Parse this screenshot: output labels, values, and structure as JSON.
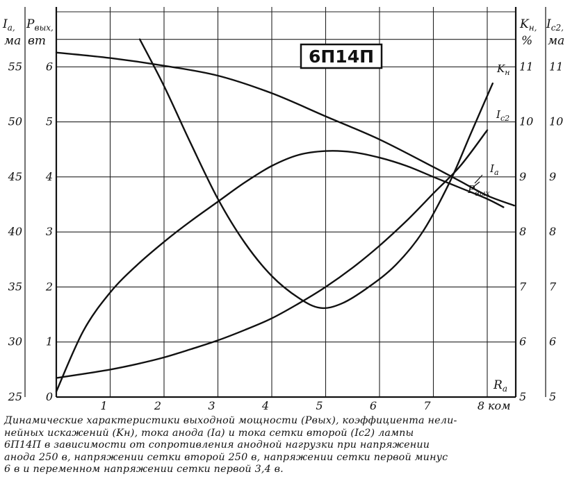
{
  "chart_data": {
    "type": "line",
    "title": "6П14П",
    "x": {
      "label": "R",
      "label_sub": "a",
      "unit": "ком",
      "range": [
        0,
        8.5
      ],
      "ticks": [
        1,
        2,
        3,
        4,
        5,
        6,
        7,
        8
      ],
      "tick_labels": [
        "1",
        "2",
        "3",
        "4",
        "5",
        "6",
        "7",
        "8"
      ]
    },
    "axes": {
      "ia": {
        "label": "I",
        "label_sub": "a,",
        "unit": "ма",
        "range": [
          25,
          60
        ],
        "tick_values": [
          25,
          30,
          35,
          40,
          45,
          50,
          55
        ],
        "tick_labels": [
          "25",
          "30",
          "35",
          "40",
          "45",
          "50",
          "55"
        ]
      },
      "pout": {
        "label": "P",
        "label_sub": "вых,",
        "unit": "вт",
        "range": [
          0,
          7
        ],
        "tick_values": [
          0,
          1,
          2,
          3,
          4,
          5,
          6
        ],
        "tick_labels": [
          "0",
          "1",
          "2",
          "3",
          "4",
          "5",
          "6"
        ]
      },
      "kn": {
        "label": "K",
        "label_sub": "н,",
        "unit": "%",
        "range": [
          5,
          12
        ],
        "tick_values": [
          5,
          6,
          7,
          8,
          9,
          10,
          11
        ],
        "tick_labels": [
          "5",
          "6",
          "7",
          "8",
          "9",
          "10",
          "11"
        ]
      },
      "ic2": {
        "label": "I",
        "label_sub": "c2,",
        "unit": "ма",
        "range": [
          5,
          12
        ],
        "tick_values": [
          5,
          6,
          7,
          8,
          9,
          10,
          11
        ],
        "tick_labels": [
          "5",
          "6",
          "7",
          "8",
          "9",
          "10",
          "11"
        ]
      }
    },
    "grid": true,
    "series": [
      {
        "name": "K",
        "name_sub": "н",
        "axis": "kn",
        "x": [
          1.55,
          2.0,
          2.5,
          3.0,
          3.5,
          4.0,
          4.5,
          4.9,
          5.3,
          5.8,
          6.3,
          6.8,
          7.3,
          7.7,
          8.1
        ],
        "y": [
          11.5,
          10.65,
          9.6,
          8.6,
          7.8,
          7.2,
          6.8,
          6.62,
          6.7,
          7.0,
          7.4,
          8.0,
          8.9,
          9.8,
          10.7
        ]
      },
      {
        "name": "I",
        "name_sub": "c2",
        "axis": "ic2",
        "x": [
          0.02,
          0.5,
          1.0,
          1.5,
          2.0,
          2.5,
          3.0,
          3.5,
          4.0,
          4.5,
          5.0,
          5.5,
          6.0,
          6.5,
          7.0,
          7.5,
          8.0
        ],
        "y": [
          5.35,
          5.42,
          5.5,
          5.6,
          5.72,
          5.87,
          6.03,
          6.22,
          6.43,
          6.7,
          7.0,
          7.35,
          7.75,
          8.2,
          8.7,
          9.2,
          9.85
        ]
      },
      {
        "name": "I",
        "name_sub": "a",
        "axis": "ia",
        "x": [
          0.0,
          1.0,
          2.0,
          3.0,
          4.0,
          5.0,
          6.0,
          7.0,
          7.5,
          8.0,
          8.5
        ],
        "y": [
          56.3,
          55.8,
          55.1,
          54.2,
          52.6,
          50.5,
          48.4,
          45.9,
          44.6,
          43.3,
          42.4
        ]
      },
      {
        "name": "P",
        "name_sub": "вых",
        "axis": "pout",
        "x": [
          0.0,
          0.5,
          1.0,
          1.5,
          2.0,
          2.5,
          3.0,
          3.5,
          4.0,
          4.5,
          5.0,
          5.5,
          6.0,
          6.5,
          7.0,
          7.5,
          8.0,
          8.3
        ],
        "y": [
          0.1,
          1.2,
          1.9,
          2.4,
          2.82,
          3.2,
          3.55,
          3.9,
          4.2,
          4.4,
          4.47,
          4.45,
          4.35,
          4.2,
          4.0,
          3.8,
          3.6,
          3.45
        ]
      }
    ]
  },
  "caption": [
    "Динамические характеристики выходной мощности (Pвых), коэффициента нели-",
    "нейных искажений (Kн), тока анода (Iа) и тока сетки второй (Iс2) лампы",
    "6П14П в зависимости от сопротивления анодной нагрузки при напряжении",
    "анода 250 в, напряжении сетки второй 250 в, напряжении сетки первой минус",
    "6 в и переменном напряжении сетки первой 3,4 в."
  ]
}
